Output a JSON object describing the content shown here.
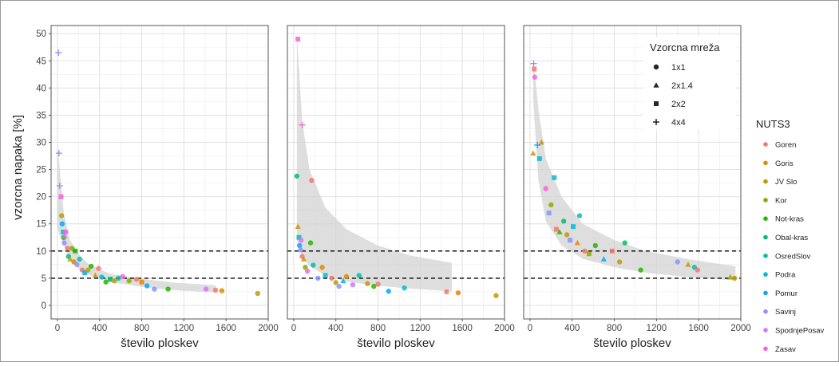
{
  "chart_data": {
    "type": "scatter",
    "ylabel": "vzorcna napaka [%]",
    "xlabel": "število ploskev",
    "xticks": [
      "0",
      "400",
      "800",
      "1200",
      "1600",
      "2000"
    ],
    "xtick_values": [
      0,
      400,
      800,
      1200,
      1600,
      2000
    ],
    "yticks": [
      "0",
      "5",
      "10",
      "15",
      "20",
      "25",
      "30",
      "35",
      "40",
      "45",
      "50"
    ],
    "ytick_values": [
      0,
      5,
      10,
      15,
      20,
      25,
      30,
      35,
      40,
      45,
      50
    ],
    "xlim": [
      -60,
      2000
    ],
    "ylim": [
      -2.5,
      51.5
    ],
    "threshold_lines": [
      5,
      10
    ],
    "grid": true,
    "legend_shape": {
      "title": "Vzorcna mreža",
      "items": [
        {
          "label": "1x1",
          "shape": "circle"
        },
        {
          "label": "2x1.4",
          "shape": "triangle"
        },
        {
          "label": "2x2",
          "shape": "square"
        },
        {
          "label": "4x4",
          "shape": "plus"
        }
      ]
    },
    "legend_color": {
      "title": "NUTS3",
      "items": [
        {
          "label": "Goren",
          "color": "#F8766D"
        },
        {
          "label": "Goris",
          "color": "#E18A00"
        },
        {
          "label": "JV Slo",
          "color": "#BE9C00"
        },
        {
          "label": "Kor",
          "color": "#8CAB00"
        },
        {
          "label": "Not-kras",
          "color": "#24B700"
        },
        {
          "label": "Obal-kras",
          "color": "#00BE70"
        },
        {
          "label": "OsredSlov",
          "color": "#00C1AB"
        },
        {
          "label": "Podra",
          "color": "#00BBDA"
        },
        {
          "label": "Pomur",
          "color": "#00ACFC"
        },
        {
          "label": "Savinj",
          "color": "#8B93FF"
        },
        {
          "label": "SpodnjePosav",
          "color": "#D575FE"
        },
        {
          "label": "Zasav",
          "color": "#F962DD"
        }
      ]
    },
    "panels": [
      {
        "band": {
          "upper": [
            [
              0,
              30
            ],
            [
              60,
              17
            ],
            [
              120,
              12
            ],
            [
              200,
              9.5
            ],
            [
              300,
              7.5
            ],
            [
              500,
              5.8
            ],
            [
              800,
              4.9
            ],
            [
              1100,
              4.2
            ],
            [
              1500,
              3.7
            ]
          ],
          "lower": [
            [
              0,
              14
            ],
            [
              60,
              11
            ],
            [
              120,
              8.5
            ],
            [
              200,
              6.8
            ],
            [
              300,
              5.6
            ],
            [
              500,
              4.3
            ],
            [
              800,
              3.4
            ],
            [
              1100,
              2.8
            ],
            [
              1500,
              2.4
            ]
          ]
        },
        "points": [
          {
            "x": 10,
            "y": 46.5,
            "shape": "plus",
            "group": "Savinj"
          },
          {
            "x": 15,
            "y": 28,
            "shape": "plus",
            "group": "Savinj"
          },
          {
            "x": 22,
            "y": 22,
            "shape": "plus",
            "group": "Savinj"
          },
          {
            "x": 35,
            "y": 20,
            "shape": "square",
            "group": "Zasav"
          },
          {
            "x": 40,
            "y": 16.5,
            "shape": "circle",
            "group": "JV Slo"
          },
          {
            "x": 45,
            "y": 15,
            "shape": "circle",
            "group": "Pomur"
          },
          {
            "x": 55,
            "y": 13.5,
            "shape": "square",
            "group": "Podra"
          },
          {
            "x": 60,
            "y": 12.5,
            "shape": "circle",
            "group": "Not-kras"
          },
          {
            "x": 65,
            "y": 11.5,
            "shape": "circle",
            "group": "Savinj"
          },
          {
            "x": 70,
            "y": 12.8,
            "shape": "triangle",
            "group": "SpodnjePosav"
          },
          {
            "x": 80,
            "y": 13.5,
            "shape": "circle",
            "group": "Zasav"
          },
          {
            "x": 95,
            "y": 10.5,
            "shape": "circle",
            "group": "Goren"
          },
          {
            "x": 105,
            "y": 9,
            "shape": "circle",
            "group": "Obal-kras"
          },
          {
            "x": 120,
            "y": 8.5,
            "shape": "triangle",
            "group": "JV Slo"
          },
          {
            "x": 140,
            "y": 10.5,
            "shape": "circle",
            "group": "Kor"
          },
          {
            "x": 155,
            "y": 8,
            "shape": "circle",
            "group": "Goris"
          },
          {
            "x": 170,
            "y": 10,
            "shape": "square",
            "group": "Not-kras"
          },
          {
            "x": 185,
            "y": 7.5,
            "shape": "circle",
            "group": "Savinj"
          },
          {
            "x": 210,
            "y": 8.5,
            "shape": "circle",
            "group": "OsredSlov"
          },
          {
            "x": 235,
            "y": 6.5,
            "shape": "circle",
            "group": "Goren"
          },
          {
            "x": 260,
            "y": 6,
            "shape": "square",
            "group": "Pomur"
          },
          {
            "x": 290,
            "y": 6.5,
            "shape": "circle",
            "group": "JV Slo"
          },
          {
            "x": 320,
            "y": 7.2,
            "shape": "circle",
            "group": "Not-kras"
          },
          {
            "x": 360,
            "y": 5.5,
            "shape": "triangle",
            "group": "Goris"
          },
          {
            "x": 390,
            "y": 6.8,
            "shape": "circle",
            "group": "Goren"
          },
          {
            "x": 420,
            "y": 5.2,
            "shape": "circle",
            "group": "Podra"
          },
          {
            "x": 460,
            "y": 4.3,
            "shape": "circle",
            "group": "Not-kras"
          },
          {
            "x": 500,
            "y": 4.8,
            "shape": "square",
            "group": "Obal-kras"
          },
          {
            "x": 540,
            "y": 4.5,
            "shape": "circle",
            "group": "JV Slo"
          },
          {
            "x": 580,
            "y": 5,
            "shape": "circle",
            "group": "OsredSlov"
          },
          {
            "x": 620,
            "y": 5.3,
            "shape": "circle",
            "group": "Zasav"
          },
          {
            "x": 680,
            "y": 4.5,
            "shape": "circle",
            "group": "Kor"
          },
          {
            "x": 750,
            "y": 4.8,
            "shape": "circle",
            "group": "Goren"
          },
          {
            "x": 800,
            "y": 4.3,
            "shape": "square",
            "group": "Goris"
          },
          {
            "x": 850,
            "y": 3.6,
            "shape": "circle",
            "group": "Pomur"
          },
          {
            "x": 920,
            "y": 3,
            "shape": "circle",
            "group": "Savinj"
          },
          {
            "x": 1050,
            "y": 3,
            "shape": "circle",
            "group": "Not-kras"
          },
          {
            "x": 1410,
            "y": 3,
            "shape": "circle",
            "group": "SpodnjePosav"
          },
          {
            "x": 1500,
            "y": 2.8,
            "shape": "circle",
            "group": "Goren"
          },
          {
            "x": 1560,
            "y": 2.7,
            "shape": "circle",
            "group": "Goris"
          },
          {
            "x": 1900,
            "y": 2.2,
            "shape": "circle",
            "group": "JV Slo"
          }
        ]
      },
      {
        "band": {
          "upper": [
            [
              30,
              50
            ],
            [
              80,
              34
            ],
            [
              150,
              25
            ],
            [
              300,
              18
            ],
            [
              500,
              14
            ],
            [
              800,
              11
            ],
            [
              1100,
              9.2
            ],
            [
              1500,
              7.8
            ]
          ],
          "lower": [
            [
              30,
              12
            ],
            [
              80,
              9
            ],
            [
              150,
              7.2
            ],
            [
              300,
              5.5
            ],
            [
              500,
              4.4
            ],
            [
              800,
              3.6
            ],
            [
              1100,
              3.1
            ],
            [
              1500,
              2.6
            ]
          ]
        },
        "points": [
          {
            "x": 40,
            "y": 49,
            "shape": "square",
            "group": "Zasav"
          },
          {
            "x": 80,
            "y": 33.2,
            "shape": "plus",
            "group": "Zasav"
          },
          {
            "x": 30,
            "y": 23.8,
            "shape": "circle",
            "group": "Obal-kras"
          },
          {
            "x": 170,
            "y": 23,
            "shape": "circle",
            "group": "Goren"
          },
          {
            "x": 40,
            "y": 14.5,
            "shape": "triangle",
            "group": "JV Slo"
          },
          {
            "x": 50,
            "y": 12.5,
            "shape": "square",
            "group": "OsredSlov"
          },
          {
            "x": 55,
            "y": 11,
            "shape": "circle",
            "group": "Pomur"
          },
          {
            "x": 65,
            "y": 10.2,
            "shape": "circle",
            "group": "Savinj"
          },
          {
            "x": 70,
            "y": 12,
            "shape": "circle",
            "group": "SpodnjePosav"
          },
          {
            "x": 80,
            "y": 9,
            "shape": "circle",
            "group": "Goren"
          },
          {
            "x": 95,
            "y": 8.5,
            "shape": "triangle",
            "group": "JV Slo"
          },
          {
            "x": 110,
            "y": 7,
            "shape": "circle",
            "group": "Kor"
          },
          {
            "x": 130,
            "y": 6.3,
            "shape": "circle",
            "group": "Zasav"
          },
          {
            "x": 160,
            "y": 11.5,
            "shape": "circle",
            "group": "Not-kras"
          },
          {
            "x": 185,
            "y": 7.4,
            "shape": "circle",
            "group": "OsredSlov"
          },
          {
            "x": 230,
            "y": 5,
            "shape": "circle",
            "group": "Savinj"
          },
          {
            "x": 270,
            "y": 7,
            "shape": "circle",
            "group": "Goris"
          },
          {
            "x": 300,
            "y": 5.5,
            "shape": "square",
            "group": "Podra"
          },
          {
            "x": 360,
            "y": 5,
            "shape": "circle",
            "group": "Goren"
          },
          {
            "x": 400,
            "y": 4.2,
            "shape": "circle",
            "group": "JV Slo"
          },
          {
            "x": 430,
            "y": 3.5,
            "shape": "circle",
            "group": "Savinj"
          },
          {
            "x": 470,
            "y": 4.5,
            "shape": "triangle",
            "group": "Pomur"
          },
          {
            "x": 500,
            "y": 5.3,
            "shape": "circle",
            "group": "Goris"
          },
          {
            "x": 560,
            "y": 3.8,
            "shape": "circle",
            "group": "SpodnjePosav"
          },
          {
            "x": 620,
            "y": 5.5,
            "shape": "circle",
            "group": "OsredSlov"
          },
          {
            "x": 700,
            "y": 4,
            "shape": "circle",
            "group": "JV Slo"
          },
          {
            "x": 760,
            "y": 3.5,
            "shape": "circle",
            "group": "Not-kras"
          },
          {
            "x": 800,
            "y": 3.9,
            "shape": "circle",
            "group": "Goren"
          },
          {
            "x": 900,
            "y": 2.6,
            "shape": "circle",
            "group": "Pomur"
          },
          {
            "x": 1050,
            "y": 3.2,
            "shape": "circle",
            "group": "Podra"
          },
          {
            "x": 1450,
            "y": 2.5,
            "shape": "circle",
            "group": "Goren"
          },
          {
            "x": 1560,
            "y": 2.3,
            "shape": "circle",
            "group": "Goris"
          },
          {
            "x": 1920,
            "y": 1.8,
            "shape": "circle",
            "group": "JV Slo"
          }
        ]
      },
      {
        "band": {
          "upper": [
            [
              30,
              46
            ],
            [
              80,
              36
            ],
            [
              150,
              27
            ],
            [
              300,
              20
            ],
            [
              500,
              15
            ],
            [
              800,
              12
            ],
            [
              1100,
              10
            ],
            [
              1500,
              8.5
            ],
            [
              1950,
              7.2
            ]
          ],
          "lower": [
            [
              30,
              38
            ],
            [
              80,
              23
            ],
            [
              150,
              15.5
            ],
            [
              300,
              11
            ],
            [
              500,
              8.6
            ],
            [
              800,
              7
            ],
            [
              1100,
              6
            ],
            [
              1500,
              5.2
            ],
            [
              1950,
              4.6
            ]
          ]
        },
        "points": [
          {
            "x": 35,
            "y": 44.5,
            "shape": "plus",
            "group": "Savinj"
          },
          {
            "x": 40,
            "y": 43.5,
            "shape": "square",
            "group": "Goren"
          },
          {
            "x": 45,
            "y": 42,
            "shape": "circle",
            "group": "Zasav"
          },
          {
            "x": 30,
            "y": 28,
            "shape": "triangle",
            "group": "JV Slo"
          },
          {
            "x": 70,
            "y": 29.5,
            "shape": "plus",
            "group": "Pomur"
          },
          {
            "x": 90,
            "y": 27,
            "shape": "square",
            "group": "Podra"
          },
          {
            "x": 110,
            "y": 30,
            "shape": "triangle",
            "group": "Goris"
          },
          {
            "x": 150,
            "y": 21.5,
            "shape": "circle",
            "group": "Zasav"
          },
          {
            "x": 180,
            "y": 17,
            "shape": "square",
            "group": "Savinj"
          },
          {
            "x": 200,
            "y": 18.5,
            "shape": "circle",
            "group": "Kor"
          },
          {
            "x": 230,
            "y": 23.5,
            "shape": "square",
            "group": "Podra"
          },
          {
            "x": 250,
            "y": 14,
            "shape": "square",
            "group": "Goren"
          },
          {
            "x": 280,
            "y": 13.5,
            "shape": "triangle",
            "group": "Not-kras"
          },
          {
            "x": 320,
            "y": 15.5,
            "shape": "circle",
            "group": "Obal-kras"
          },
          {
            "x": 350,
            "y": 13,
            "shape": "circle",
            "group": "JV Slo"
          },
          {
            "x": 380,
            "y": 12,
            "shape": "square",
            "group": "Savinj"
          },
          {
            "x": 410,
            "y": 14.5,
            "shape": "square",
            "group": "Podra"
          },
          {
            "x": 450,
            "y": 11.5,
            "shape": "triangle",
            "group": "Goris"
          },
          {
            "x": 470,
            "y": 16.5,
            "shape": "circle",
            "group": "OsredSlov"
          },
          {
            "x": 520,
            "y": 10,
            "shape": "circle",
            "group": "Goren"
          },
          {
            "x": 560,
            "y": 9.5,
            "shape": "square",
            "group": "Kor"
          },
          {
            "x": 620,
            "y": 11,
            "shape": "circle",
            "group": "Not-kras"
          },
          {
            "x": 700,
            "y": 8.5,
            "shape": "triangle",
            "group": "Pomur"
          },
          {
            "x": 780,
            "y": 10,
            "shape": "square",
            "group": "Goren"
          },
          {
            "x": 850,
            "y": 8,
            "shape": "circle",
            "group": "JV Slo"
          },
          {
            "x": 900,
            "y": 11.5,
            "shape": "circle",
            "group": "Obal-kras"
          },
          {
            "x": 1050,
            "y": 6.5,
            "shape": "circle",
            "group": "Not-kras"
          },
          {
            "x": 1400,
            "y": 8,
            "shape": "circle",
            "group": "Savinj"
          },
          {
            "x": 1500,
            "y": 7.5,
            "shape": "triangle",
            "group": "JV Slo"
          },
          {
            "x": 1560,
            "y": 7,
            "shape": "circle",
            "group": "OsredSlov"
          },
          {
            "x": 1590,
            "y": 6.5,
            "shape": "circle",
            "group": "Goren"
          },
          {
            "x": 1900,
            "y": 5.2,
            "shape": "triangle",
            "group": "Kor"
          },
          {
            "x": 1940,
            "y": 5,
            "shape": "circle",
            "group": "JV Slo"
          }
        ]
      }
    ]
  }
}
